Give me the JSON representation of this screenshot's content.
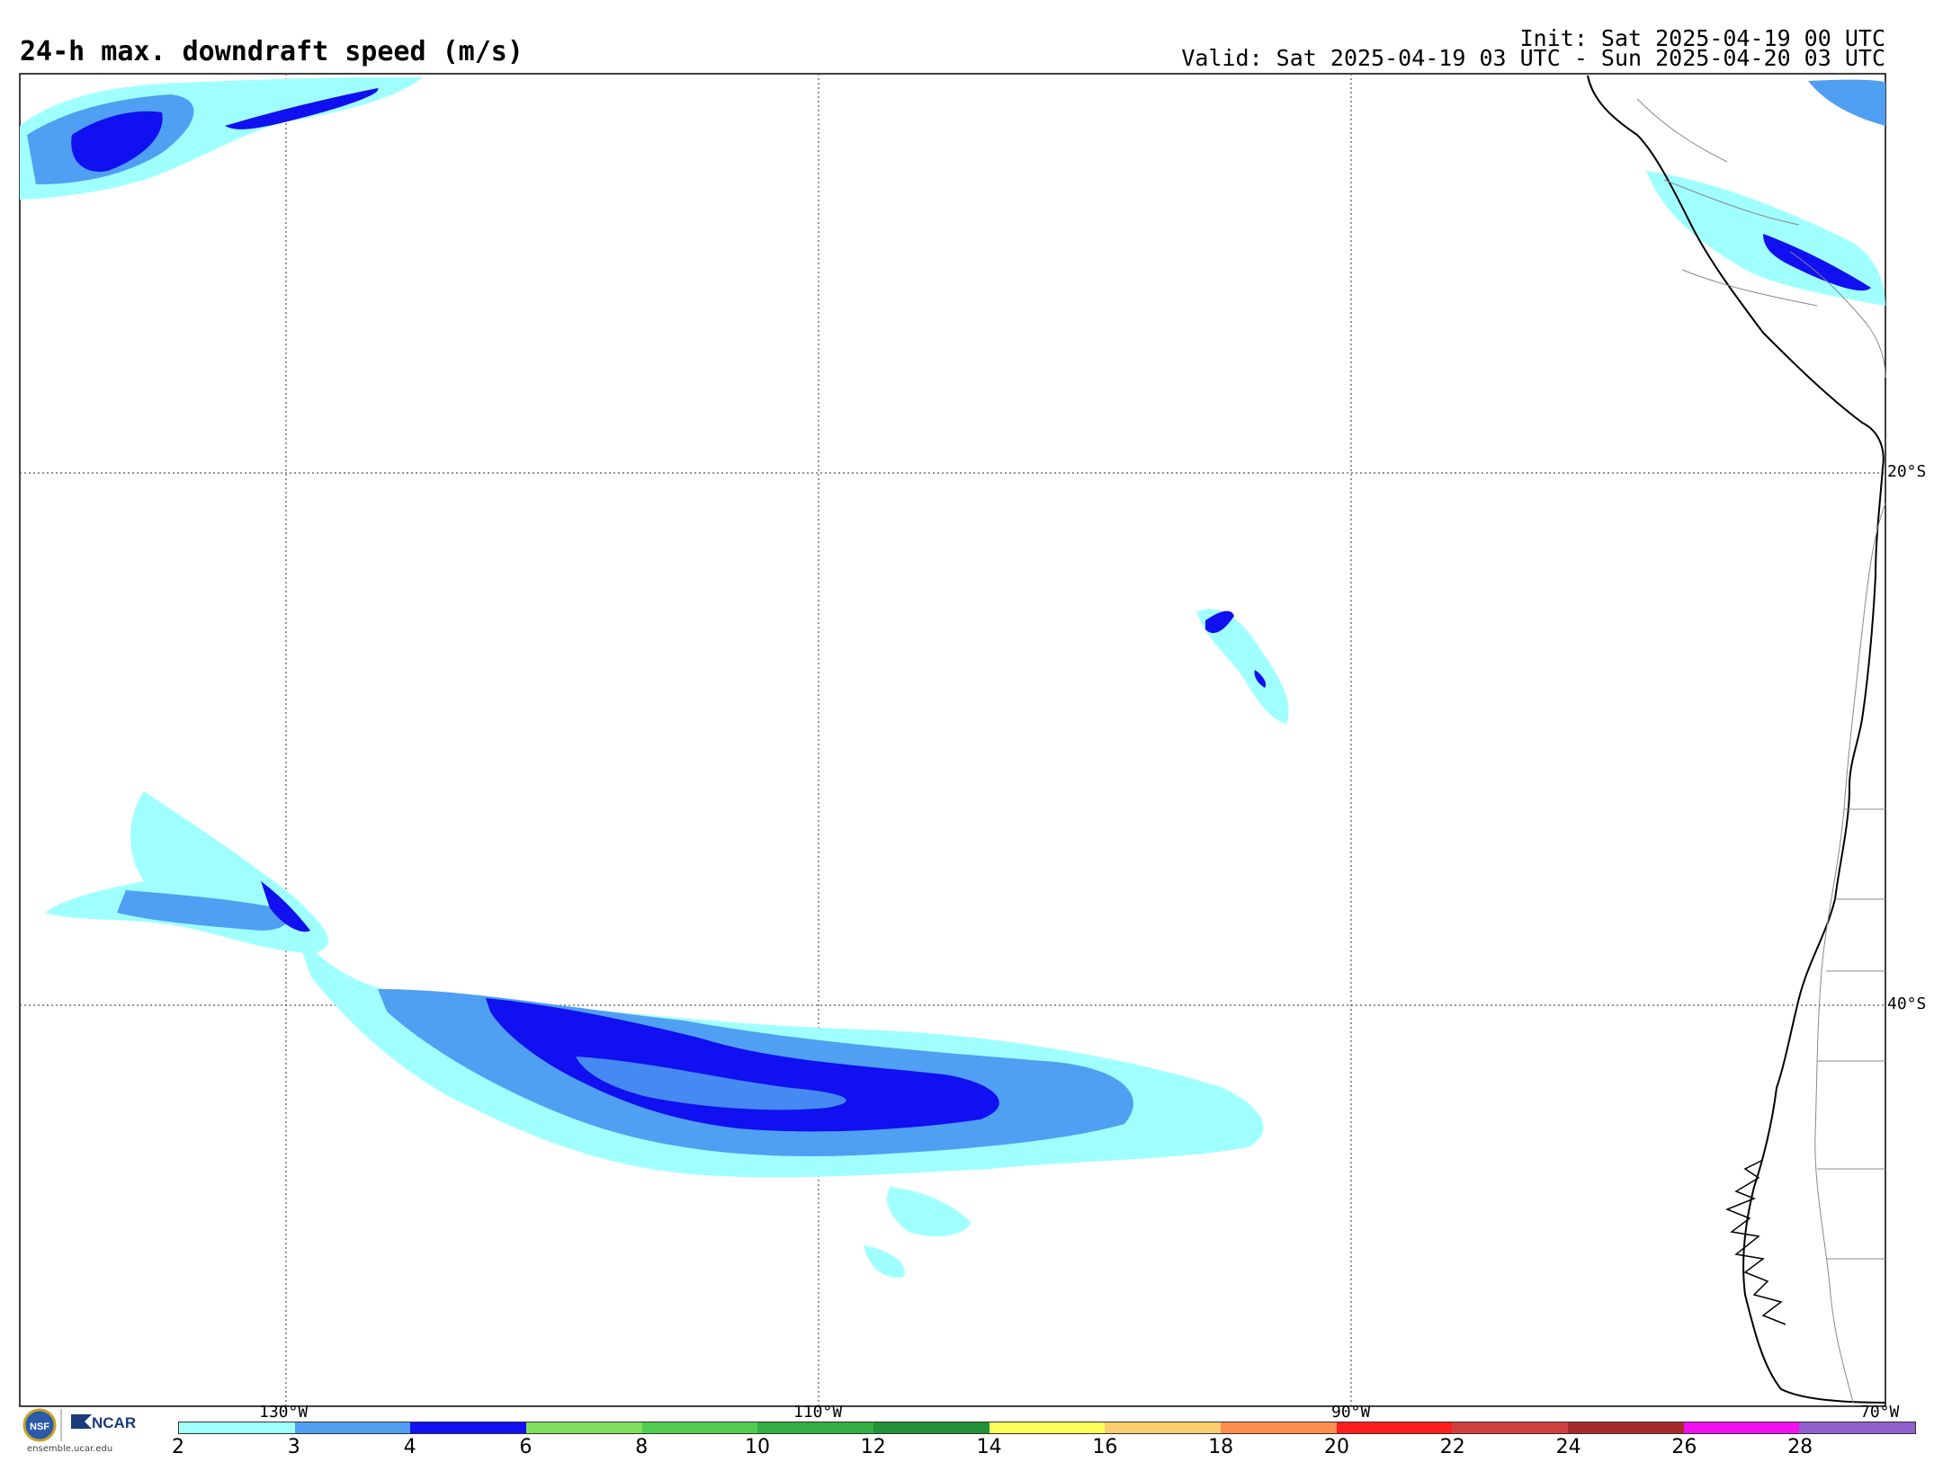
{
  "header": {
    "title": "24-h max. downdraft speed (m/s)",
    "init": "Init: Sat 2025-04-19 00 UTC",
    "valid": "Valid: Sat 2025-04-19 03 UTC - Sun 2025-04-20 03 UTC"
  },
  "map": {
    "lat_labels": [
      "20°S",
      "40°S"
    ],
    "lon_labels": [
      "130°W",
      "110°W",
      "90°W",
      "70°W"
    ],
    "ocean_color": "#ffffff",
    "coast_color": "#000000",
    "border_color": "#888888"
  },
  "colorbar": {
    "ticks": [
      "2",
      "3",
      "4",
      "6",
      "8",
      "10",
      "12",
      "14",
      "16",
      "18",
      "20",
      "22",
      "24",
      "26",
      "28"
    ],
    "colors": [
      "#a0ffff",
      "#4f9ff2",
      "#1010f0",
      "#7fdf5f",
      "#50cc50",
      "#32af40",
      "#239238",
      "#ffff5c",
      "#ffcf6f",
      "#ff8f4f",
      "#ff1f1f",
      "#cf3f3f",
      "#a52b2b",
      "#f010f0",
      "#9060cc"
    ]
  },
  "branding": {
    "logo_nsf": "NSF",
    "logo_ncar": "NCAR",
    "site": "ensemble.ucar.edu"
  }
}
